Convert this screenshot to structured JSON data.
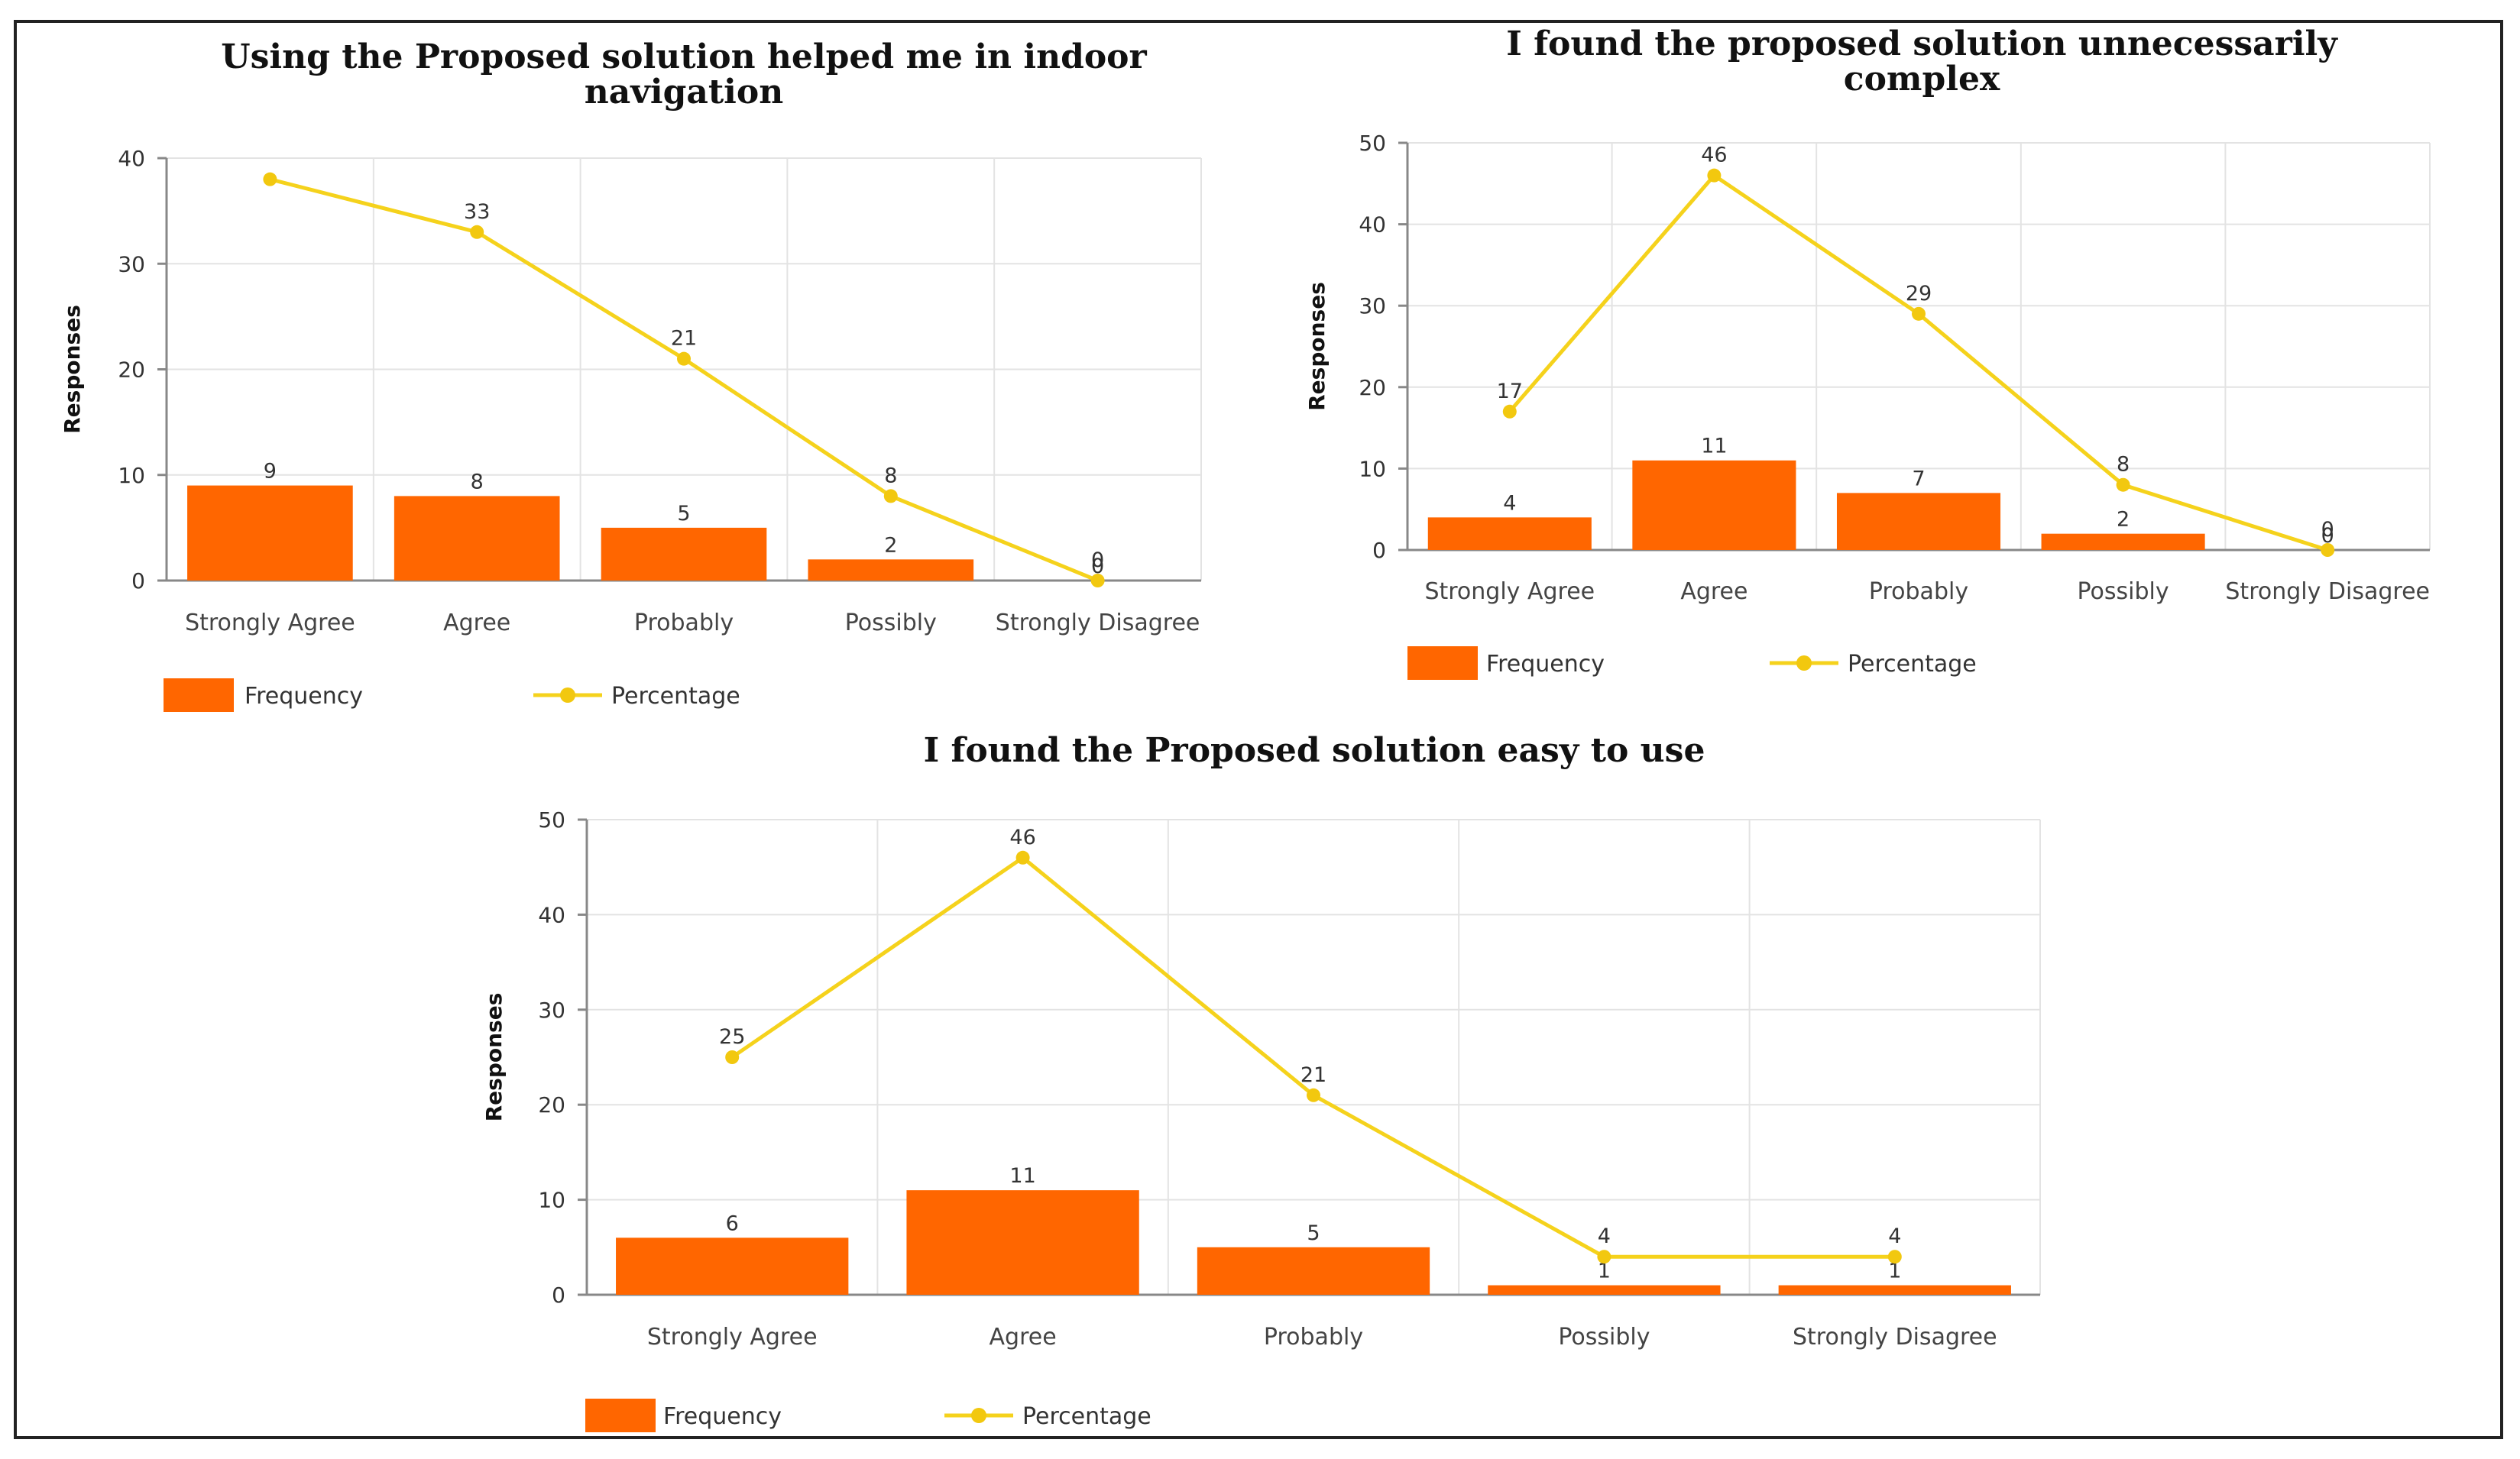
{
  "colors": {
    "bar": "#ff6600",
    "line": "#f5d21c",
    "marker": "#f2c80f",
    "grid": "#e3e3e3"
  },
  "chart_data": [
    {
      "type": "bar",
      "title": [
        "Using the Proposed solution helped me in indoor",
        "navigation"
      ],
      "ylabel": "Responses",
      "xlabel": "",
      "ylim": [
        0,
        40
      ],
      "yticks": [
        0,
        10,
        20,
        30,
        40
      ],
      "grid": true,
      "categories": [
        "Strongly Agree",
        "Agree",
        "Probably",
        "Possibly",
        "Strongly Disagree"
      ],
      "legend": [
        "Frequency",
        "Percentage"
      ],
      "legend_position": "bottom-left",
      "series": [
        {
          "name": "Frequency",
          "kind": "bar",
          "values": [
            9,
            8,
            5,
            2,
            0
          ],
          "labels": [
            "9",
            "8",
            "5",
            "2",
            "0"
          ]
        },
        {
          "name": "Percentage",
          "kind": "line",
          "values": [
            38,
            33,
            21,
            8,
            0
          ],
          "labels": [
            "",
            "33",
            "21",
            "8",
            "0"
          ]
        }
      ]
    },
    {
      "type": "bar",
      "title": [
        "I found the proposed solution unnecessarily",
        "complex"
      ],
      "ylabel": "Responses",
      "xlabel": "",
      "ylim": [
        0,
        50
      ],
      "yticks": [
        0,
        10,
        20,
        30,
        40,
        50
      ],
      "grid": true,
      "categories": [
        "Strongly Agree",
        "Agree",
        "Probably",
        "Possibly",
        "Strongly Disagree"
      ],
      "legend": [
        "Frequency",
        "Percentage"
      ],
      "legend_position": "bottom-left",
      "series": [
        {
          "name": "Frequency",
          "kind": "bar",
          "values": [
            4,
            11,
            7,
            2,
            0
          ],
          "labels": [
            "4",
            "11",
            "7",
            "2",
            "0"
          ]
        },
        {
          "name": "Percentage",
          "kind": "line",
          "values": [
            17,
            46,
            29,
            8,
            0
          ],
          "labels": [
            "17",
            "46",
            "29",
            "8",
            "0"
          ]
        }
      ]
    },
    {
      "type": "bar",
      "title": [
        "I found the Proposed solution easy to use"
      ],
      "ylabel": "Responses",
      "xlabel": "",
      "ylim": [
        0,
        50
      ],
      "yticks": [
        0,
        10,
        20,
        30,
        40,
        50
      ],
      "grid": true,
      "categories": [
        "Strongly Agree",
        "Agree",
        "Probably",
        "Possibly",
        "Strongly Disagree"
      ],
      "legend": [
        "Frequency",
        "Percentage"
      ],
      "legend_position": "bottom-left",
      "series": [
        {
          "name": "Frequency",
          "kind": "bar",
          "values": [
            6,
            11,
            5,
            1,
            1
          ],
          "labels": [
            "6",
            "11",
            "5",
            "1",
            "1"
          ]
        },
        {
          "name": "Percentage",
          "kind": "line",
          "values": [
            25,
            46,
            21,
            4,
            4
          ],
          "labels": [
            "25",
            "46",
            "21",
            "4",
            "4"
          ]
        }
      ]
    }
  ]
}
